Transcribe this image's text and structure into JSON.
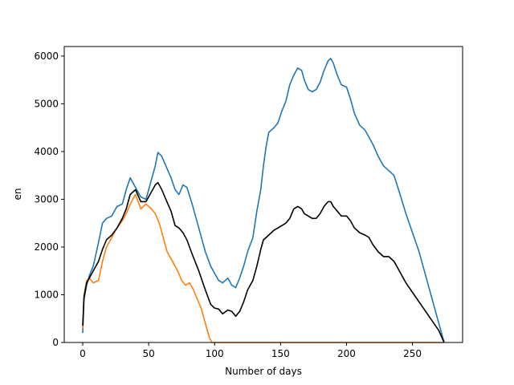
{
  "chart_data": {
    "type": "line",
    "title": "",
    "xlabel": "Number of days",
    "ylabel": "en",
    "xlim": [
      -14,
      288
    ],
    "ylim": [
      0,
      6200
    ],
    "grid": false,
    "x_ticks": [
      0,
      50,
      100,
      150,
      200,
      250
    ],
    "y_ticks": [
      0,
      1000,
      2000,
      3000,
      4000,
      5000,
      6000
    ],
    "series": [
      {
        "color": "#1f77b4",
        "points": [
          [
            0,
            200
          ],
          [
            1,
            900
          ],
          [
            3,
            1200
          ],
          [
            5,
            1400
          ],
          [
            8,
            1600
          ],
          [
            12,
            2100
          ],
          [
            15,
            2500
          ],
          [
            18,
            2600
          ],
          [
            22,
            2650
          ],
          [
            26,
            2850
          ],
          [
            30,
            2900
          ],
          [
            33,
            3200
          ],
          [
            36,
            3450
          ],
          [
            40,
            3250
          ],
          [
            44,
            3050
          ],
          [
            48,
            3000
          ],
          [
            52,
            3400
          ],
          [
            55,
            3700
          ],
          [
            57,
            3980
          ],
          [
            60,
            3900
          ],
          [
            63,
            3700
          ],
          [
            67,
            3450
          ],
          [
            70,
            3200
          ],
          [
            73,
            3100
          ],
          [
            76,
            3300
          ],
          [
            79,
            3250
          ],
          [
            83,
            2900
          ],
          [
            88,
            2400
          ],
          [
            93,
            1900
          ],
          [
            97,
            1600
          ],
          [
            100,
            1450
          ],
          [
            103,
            1300
          ],
          [
            106,
            1250
          ],
          [
            110,
            1350
          ],
          [
            113,
            1200
          ],
          [
            116,
            1150
          ],
          [
            119,
            1350
          ],
          [
            122,
            1600
          ],
          [
            125,
            1900
          ],
          [
            129,
            2200
          ],
          [
            132,
            2750
          ],
          [
            135,
            3200
          ],
          [
            137,
            3700
          ],
          [
            139,
            4100
          ],
          [
            141,
            4400
          ],
          [
            145,
            4500
          ],
          [
            148,
            4600
          ],
          [
            151,
            4850
          ],
          [
            154,
            5050
          ],
          [
            157,
            5400
          ],
          [
            160,
            5600
          ],
          [
            163,
            5750
          ],
          [
            166,
            5700
          ],
          [
            168,
            5500
          ],
          [
            171,
            5300
          ],
          [
            174,
            5250
          ],
          [
            177,
            5300
          ],
          [
            180,
            5450
          ],
          [
            183,
            5700
          ],
          [
            186,
            5900
          ],
          [
            188,
            5950
          ],
          [
            190,
            5850
          ],
          [
            193,
            5600
          ],
          [
            196,
            5400
          ],
          [
            200,
            5350
          ],
          [
            203,
            5100
          ],
          [
            206,
            4800
          ],
          [
            210,
            4550
          ],
          [
            214,
            4450
          ],
          [
            217,
            4300
          ],
          [
            220,
            4150
          ],
          [
            224,
            3900
          ],
          [
            228,
            3700
          ],
          [
            232,
            3600
          ],
          [
            236,
            3500
          ],
          [
            240,
            3150
          ],
          [
            245,
            2700
          ],
          [
            250,
            2300
          ],
          [
            255,
            1900
          ],
          [
            260,
            1400
          ],
          [
            265,
            900
          ],
          [
            270,
            400
          ],
          [
            274,
            0
          ]
        ]
      },
      {
        "color": "#ff7f0e",
        "points": [
          [
            0,
            300
          ],
          [
            1,
            1000
          ],
          [
            3,
            1300
          ],
          [
            5,
            1350
          ],
          [
            8,
            1250
          ],
          [
            12,
            1300
          ],
          [
            15,
            1700
          ],
          [
            18,
            2000
          ],
          [
            22,
            2200
          ],
          [
            26,
            2400
          ],
          [
            30,
            2550
          ],
          [
            33,
            2700
          ],
          [
            36,
            2900
          ],
          [
            40,
            3100
          ],
          [
            44,
            2800
          ],
          [
            48,
            2900
          ],
          [
            52,
            2800
          ],
          [
            55,
            2700
          ],
          [
            58,
            2500
          ],
          [
            61,
            2200
          ],
          [
            64,
            1900
          ],
          [
            68,
            1700
          ],
          [
            72,
            1500
          ],
          [
            75,
            1300
          ],
          [
            78,
            1200
          ],
          [
            81,
            1250
          ],
          [
            84,
            1100
          ],
          [
            87,
            900
          ],
          [
            90,
            700
          ],
          [
            93,
            400
          ],
          [
            96,
            100
          ],
          [
            98,
            0
          ],
          [
            274,
            0
          ]
        ]
      },
      {
        "color": "#000000",
        "points": [
          [
            0,
            350
          ],
          [
            1,
            950
          ],
          [
            3,
            1250
          ],
          [
            5,
            1350
          ],
          [
            8,
            1500
          ],
          [
            12,
            1700
          ],
          [
            15,
            1950
          ],
          [
            18,
            2150
          ],
          [
            22,
            2250
          ],
          [
            26,
            2400
          ],
          [
            30,
            2600
          ],
          [
            33,
            2800
          ],
          [
            36,
            3100
          ],
          [
            40,
            3200
          ],
          [
            44,
            2950
          ],
          [
            48,
            2950
          ],
          [
            52,
            3150
          ],
          [
            55,
            3300
          ],
          [
            57,
            3350
          ],
          [
            60,
            3200
          ],
          [
            63,
            3000
          ],
          [
            67,
            2750
          ],
          [
            70,
            2450
          ],
          [
            73,
            2400
          ],
          [
            76,
            2300
          ],
          [
            79,
            2150
          ],
          [
            83,
            1850
          ],
          [
            88,
            1500
          ],
          [
            93,
            1100
          ],
          [
            97,
            800
          ],
          [
            100,
            720
          ],
          [
            103,
            700
          ],
          [
            106,
            600
          ],
          [
            110,
            680
          ],
          [
            113,
            650
          ],
          [
            116,
            550
          ],
          [
            119,
            650
          ],
          [
            122,
            850
          ],
          [
            125,
            1100
          ],
          [
            129,
            1300
          ],
          [
            132,
            1600
          ],
          [
            135,
            1950
          ],
          [
            137,
            2150
          ],
          [
            139,
            2200
          ],
          [
            141,
            2250
          ],
          [
            145,
            2350
          ],
          [
            148,
            2400
          ],
          [
            151,
            2450
          ],
          [
            154,
            2500
          ],
          [
            157,
            2600
          ],
          [
            160,
            2800
          ],
          [
            163,
            2850
          ],
          [
            166,
            2800
          ],
          [
            168,
            2700
          ],
          [
            171,
            2650
          ],
          [
            174,
            2600
          ],
          [
            177,
            2600
          ],
          [
            180,
            2700
          ],
          [
            183,
            2850
          ],
          [
            186,
            2950
          ],
          [
            188,
            2950
          ],
          [
            190,
            2850
          ],
          [
            193,
            2750
          ],
          [
            196,
            2650
          ],
          [
            200,
            2650
          ],
          [
            203,
            2550
          ],
          [
            206,
            2400
          ],
          [
            210,
            2300
          ],
          [
            214,
            2250
          ],
          [
            217,
            2200
          ],
          [
            220,
            2050
          ],
          [
            224,
            1900
          ],
          [
            228,
            1800
          ],
          [
            232,
            1800
          ],
          [
            236,
            1700
          ],
          [
            240,
            1500
          ],
          [
            245,
            1250
          ],
          [
            250,
            1050
          ],
          [
            255,
            850
          ],
          [
            260,
            650
          ],
          [
            265,
            450
          ],
          [
            270,
            250
          ],
          [
            274,
            0
          ]
        ]
      }
    ]
  }
}
